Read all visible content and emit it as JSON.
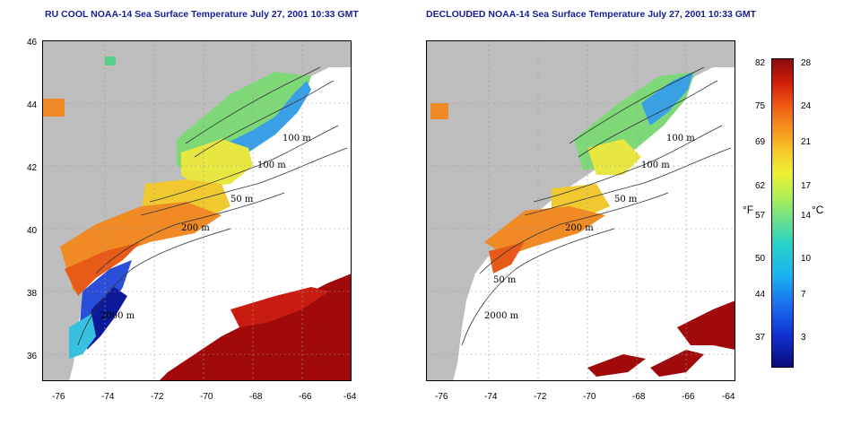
{
  "titles": {
    "left": "RU COOL NOAA-14 Sea Surface Temperature July 27, 2001 10:33 GMT",
    "right": "DECLOUDED NOAA-14 Sea Surface Temperature July 27, 2001 10:33 GMT"
  },
  "map": {
    "x_ticks": [
      "-76",
      "-74",
      "-72",
      "-70",
      "-68",
      "-66",
      "-64"
    ],
    "y_ticks": [
      "46",
      "44",
      "42",
      "40",
      "38",
      "36"
    ],
    "contour_labels": [
      "100 m",
      "100 m",
      "50 m",
      "200 m",
      "2000 m"
    ],
    "contour_labels_right": [
      "100 m",
      "100 m",
      "50 m",
      "200 m",
      "50 m",
      "2000 m"
    ]
  },
  "colorbar": {
    "unit_f": "°F",
    "unit_c": "°C",
    "f_ticks": [
      "82",
      "75",
      "69",
      "62",
      "57",
      "50",
      "44",
      "37"
    ],
    "c_ticks": [
      "28",
      "24",
      "21",
      "17",
      "14",
      "10",
      "7",
      "3"
    ]
  },
  "colors": {
    "land": "#bdbdbd",
    "cloud": "#ffffff",
    "title": "#1a1a9a",
    "warm": "#a00a0a",
    "cold": "#1030c0"
  }
}
